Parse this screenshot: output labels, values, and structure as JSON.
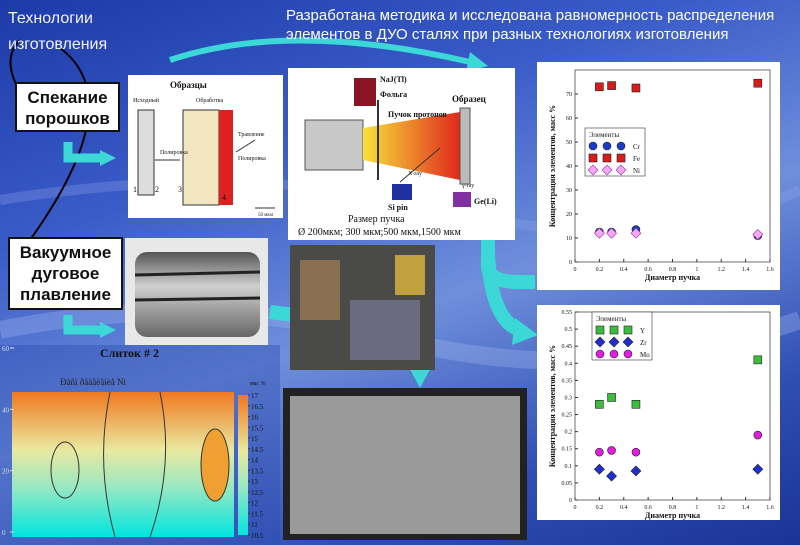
{
  "header": {
    "left": "Технологии изготовления",
    "title": "Разработана методика и исследована равномерность распределения элементов в ДУО сталях при разных технологиях изготовления"
  },
  "methods": [
    "Спекание порошков",
    "Вакуумное дуговое плавление"
  ],
  "ingot_caption": "Слиток # 2",
  "sample_diagram": {
    "title": "Образцы",
    "initial": "Исходный",
    "processing": "Обработка",
    "polish_1": "Полировка",
    "etching": "Травление",
    "polish_2": "Полировка",
    "numbers": [
      "1",
      "2",
      "3",
      "4"
    ],
    "scale": "50 мкм"
  },
  "setup_diagram": {
    "detector": "NaJ(Tl)",
    "foil": "Фольга",
    "sample": "Образец",
    "beam": "Пучок протонов",
    "xray": "X-ray",
    "si": "Si pin",
    "ge": "Ge(Li)",
    "gamma": "γ-ray",
    "size_title": "Размер пучка",
    "sizes": "Ø 200мкм; 300 мкм;500 мкм,1500 мкм"
  },
  "contour_map": {
    "title": "Ðàñï ðåäåëåíèå Ni",
    "ylim": [
      0,
      60
    ],
    "yticks": [
      0,
      20,
      40,
      60
    ],
    "colorbar_label": "мас %",
    "colorbar_lim": [
      10.5,
      17
    ],
    "colorbar_ticks": [
      10.5,
      11,
      11.5,
      12,
      12.5,
      13,
      13.5,
      14,
      14.5,
      15,
      15.5,
      16,
      16.5,
      17
    ]
  },
  "chart_data": [
    {
      "type": "scatter",
      "x_label": "Диаметр пучка",
      "y_label": "Концентрация элементов, масс %",
      "legend_title": "Элементы",
      "xlim": [
        0,
        1.6
      ],
      "xticks": [
        0,
        0.2,
        0.4,
        0.6,
        0.8,
        1,
        1.2,
        1.4,
        1.6
      ],
      "ylim": [
        0,
        80
      ],
      "yticks": [
        0,
        10,
        20,
        30,
        40,
        50,
        60,
        70
      ],
      "x": [
        0.2,
        0.3,
        0.5,
        1.5
      ],
      "series": [
        {
          "name": "Cr",
          "color": "#1a3cc8",
          "marker": "circle",
          "values": [
            12.5,
            12.5,
            13.5,
            11
          ]
        },
        {
          "name": "Fe",
          "color": "#d81c1c",
          "marker": "square",
          "values": [
            73,
            73.5,
            72.5,
            74.5
          ]
        },
        {
          "name": "Ni",
          "color": "#f2a8f2",
          "marker": "diamond",
          "values": [
            12,
            12,
            12,
            11.5
          ]
        }
      ]
    },
    {
      "type": "scatter",
      "x_label": "Диаметр пучка",
      "y_label": "Концентрация элементов, масс %",
      "legend_title": "Элементы",
      "xlim": [
        0,
        1.6
      ],
      "xticks": [
        0,
        0.2,
        0.4,
        0.6,
        0.8,
        1,
        1.2,
        1.4,
        1.6
      ],
      "ylim": [
        0,
        0.55
      ],
      "yticks": [
        0,
        0.05,
        0.1,
        0.15,
        0.2,
        0.25,
        0.3,
        0.35,
        0.4,
        0.45,
        0.5,
        0.55
      ],
      "x": [
        0.2,
        0.3,
        0.5,
        1.5
      ],
      "series": [
        {
          "name": "Y",
          "color": "#3cbc3c",
          "marker": "square",
          "values": [
            0.28,
            0.3,
            0.28,
            0.41
          ]
        },
        {
          "name": "Zr",
          "color": "#1f2ed0",
          "marker": "diamond",
          "values": [
            0.09,
            0.07,
            0.085,
            0.09
          ]
        },
        {
          "name": "Mo",
          "color": "#e01ee0",
          "marker": "circle",
          "values": [
            0.14,
            0.145,
            0.14,
            0.19
          ]
        }
      ]
    }
  ]
}
